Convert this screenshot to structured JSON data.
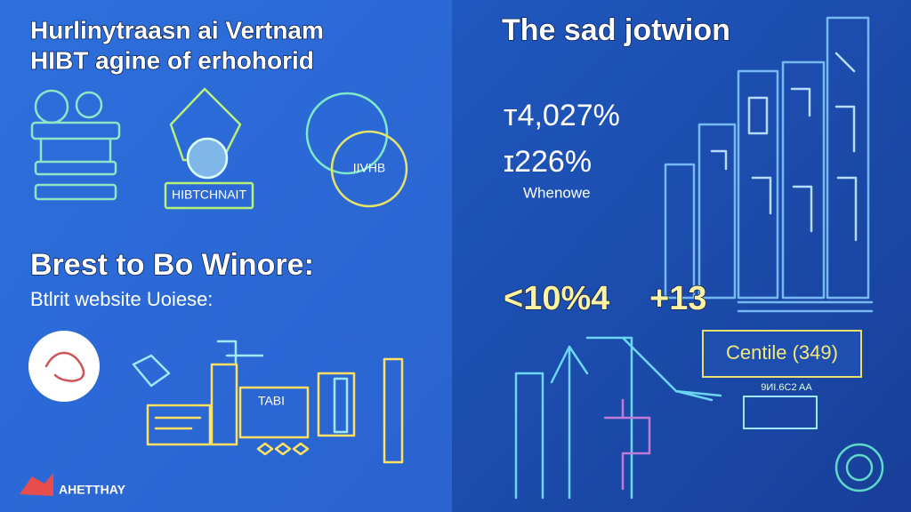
{
  "left": {
    "title": [
      "Hurlinytraasn ai Vertnam",
      "HIBT agine of erhohorid"
    ],
    "icon_labels": [
      "HIBTCHNAIT",
      "IIVHB"
    ],
    "heading": "Brest to Bo Winore:",
    "subheading": "Btlrit website Uoiese:",
    "sign": "TABI",
    "brand": "AHETTHAY"
  },
  "right": {
    "title": "The sad jotwion",
    "stats": [
      "т4,027%",
      "ɪ226%"
    ],
    "stat_caption": "Whenowe",
    "highlights": [
      "<10%4",
      "+13"
    ],
    "box_label": "Centile (349)",
    "box_note": "9ИІ.6C2 AA"
  }
}
